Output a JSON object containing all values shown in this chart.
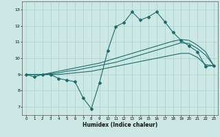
{
  "xlabel": "Humidex (Indice chaleur)",
  "xlim": [
    -0.5,
    23.5
  ],
  "ylim": [
    6.5,
    13.5
  ],
  "yticks": [
    7,
    8,
    9,
    10,
    11,
    12,
    13
  ],
  "xticks": [
    0,
    1,
    2,
    3,
    4,
    5,
    6,
    7,
    8,
    9,
    10,
    11,
    12,
    13,
    14,
    15,
    16,
    17,
    18,
    19,
    20,
    21,
    22,
    23
  ],
  "bg_color": "#cce8e4",
  "line_color": "#1a6b6b",
  "grid_color": "#aacfcb",
  "line1_x": [
    0,
    1,
    2,
    3,
    4,
    5,
    6,
    7,
    8,
    9,
    10,
    11,
    12,
    13,
    14,
    15,
    16,
    17,
    18,
    19,
    20,
    21,
    22,
    23
  ],
  "line1_y": [
    9.0,
    8.85,
    9.0,
    9.0,
    8.75,
    8.65,
    8.55,
    7.55,
    6.9,
    8.5,
    10.45,
    11.95,
    12.2,
    12.85,
    12.35,
    12.55,
    12.85,
    12.25,
    11.6,
    11.1,
    10.75,
    10.4,
    9.5,
    9.55
  ],
  "line2_x": [
    0,
    1,
    2,
    3,
    4,
    5,
    6,
    7,
    8,
    9,
    10,
    11,
    12,
    13,
    14,
    15,
    16,
    17,
    18,
    19,
    20,
    21,
    22,
    23
  ],
  "line2_y": [
    9.0,
    9.0,
    9.0,
    9.1,
    9.2,
    9.3,
    9.4,
    9.5,
    9.6,
    9.7,
    9.85,
    10.0,
    10.15,
    10.3,
    10.45,
    10.6,
    10.75,
    10.9,
    11.05,
    11.15,
    11.1,
    10.8,
    10.4,
    9.55
  ],
  "line3_x": [
    0,
    1,
    2,
    3,
    4,
    5,
    6,
    7,
    8,
    9,
    10,
    11,
    12,
    13,
    14,
    15,
    16,
    17,
    18,
    19,
    20,
    21,
    22,
    23
  ],
  "line3_y": [
    9.0,
    9.0,
    9.0,
    9.05,
    9.1,
    9.2,
    9.25,
    9.35,
    9.45,
    9.55,
    9.65,
    9.75,
    9.9,
    10.05,
    10.2,
    10.35,
    10.5,
    10.65,
    10.8,
    10.95,
    10.9,
    10.6,
    10.2,
    9.55
  ],
  "line4_x": [
    0,
    1,
    2,
    3,
    4,
    5,
    6,
    7,
    8,
    9,
    10,
    11,
    12,
    13,
    14,
    15,
    16,
    17,
    18,
    19,
    20,
    21,
    22,
    23
  ],
  "line4_y": [
    9.0,
    9.0,
    9.0,
    9.0,
    9.0,
    9.05,
    9.1,
    9.15,
    9.2,
    9.3,
    9.4,
    9.5,
    9.6,
    9.7,
    9.8,
    9.9,
    10.0,
    10.1,
    10.2,
    10.3,
    10.3,
    10.05,
    9.6,
    9.55
  ]
}
